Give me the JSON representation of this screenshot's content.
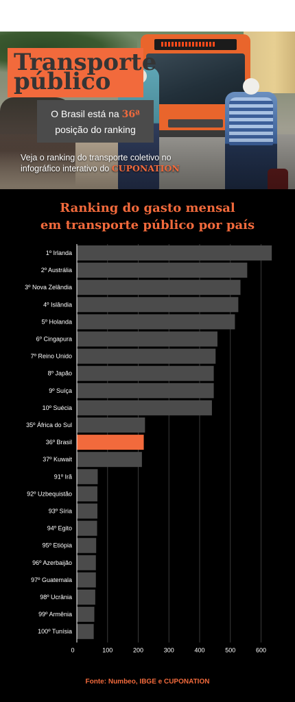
{
  "header": {
    "title_line1": "Transporte",
    "title_line2": "público",
    "rank_text_before": "O Brasil está na ",
    "rank_position": "36ª",
    "rank_text_after": "posição do ranking",
    "cta_text": "Veja o ranking do transporte coletivo no infográfico interativo do ",
    "cta_brand": "CUPONATION"
  },
  "colors": {
    "accent": "#f26a3c",
    "bar": "#4b4b4b",
    "highlight_bar": "#f26a3c",
    "background": "#000000"
  },
  "chart_title_line1": "Ranking do gasto mensal",
  "chart_title_line2": "em transporte público por país",
  "chart_data": {
    "type": "bar",
    "orientation": "horizontal",
    "title": "Ranking do gasto mensal em transporte público por país",
    "categories": [
      "1º Irlanda",
      "2º Austrália",
      "3º Nova Zelândia",
      "4º Islândia",
      "5º Holanda",
      "6º Cingapura",
      "7º Reino Unido",
      "8º Japão",
      "9º Suíça",
      "10º Suécia",
      "35º África do Sul",
      "36º Brasil",
      "37º Kuwait",
      "91º Irã",
      "92º Uzbequistão",
      "93º Síria",
      "94º Egito",
      "95º Etiópia",
      "96º Azerbaijão",
      "97º Guatemala",
      "98º Ucrânia",
      "99º Armênia",
      "100º Tunísia"
    ],
    "values": [
      635,
      555,
      533,
      526,
      515,
      458,
      452,
      446,
      446,
      440,
      222,
      218,
      212,
      68,
      67,
      67,
      66,
      63,
      62,
      62,
      60,
      57,
      55
    ],
    "highlight": "36º Brasil",
    "x_ticks": [
      0,
      100,
      200,
      300,
      400,
      500,
      600
    ],
    "xlim": [
      0,
      640
    ],
    "grid": true
  },
  "source": "Fonte: Numbeo, IBGE e CUPONATION"
}
